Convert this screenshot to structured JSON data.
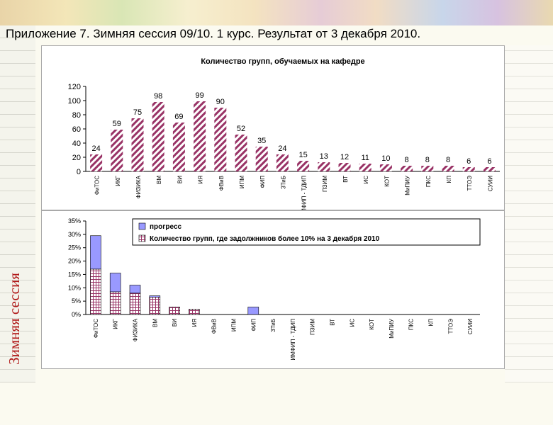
{
  "page": {
    "title": "Приложение 7. Зимняя сессия 09/10.   1 курс.  Результат от 3 декабря 2010.",
    "side_label": "Зимняя сессия"
  },
  "chart_data": [
    {
      "type": "bar",
      "title": "Количество групп, обучаемых на кафедре",
      "categories": [
        "ФиТОС",
        "ИКГ",
        "ФИЗИКА",
        "ВМ",
        "ВИ",
        "ИЯ",
        "ФВиВ",
        "ИПМ",
        "ФИП",
        "ЗТиБ",
        "ИМФИП - ТДИП",
        "ПЗИМ",
        "ВТ",
        "ИС",
        "КОТ",
        "МиПИУ",
        "ПКС",
        "КП",
        "ТТОЭ",
        "СУИИ"
      ],
      "values": [
        24,
        59,
        75,
        98,
        69,
        99,
        90,
        52,
        35,
        24,
        15,
        13,
        12,
        11,
        10,
        8,
        8,
        8,
        6,
        6
      ],
      "ylim": [
        0,
        120
      ],
      "yticks": [
        "0",
        "20",
        "40",
        "60",
        "80",
        "100",
        "120"
      ],
      "colors": {
        "bar": "#993366"
      },
      "xlabel": "",
      "ylabel": ""
    },
    {
      "type": "bar",
      "stacked": true,
      "categories": [
        "ФиТОС",
        "ИКГ",
        "ФИЗИКА",
        "ВМ",
        "ВИ",
        "ИЯ",
        "ФВиВ",
        "ИПМ",
        "ФИП",
        "ЗТиБ",
        "ИМФИП - ТДИП",
        "ПЗИМ",
        "ВТ",
        "ИС",
        "КОТ",
        "МиПИУ",
        "ПКС",
        "КП",
        "ТТОЭ",
        "СУИИ"
      ],
      "series": [
        {
          "name": "Количество групп, где задолжников более  10% на 3 декабря 2010",
          "values": [
            17,
            8.5,
            8,
            6.5,
            2.8,
            2,
            0,
            0,
            0,
            0,
            0,
            0,
            0,
            0,
            0,
            0,
            0,
            0,
            0,
            0
          ],
          "color": "#993366"
        },
        {
          "name": "прогресс",
          "values": [
            12.5,
            7,
            3,
            0.5,
            0,
            0,
            0,
            0,
            2.8,
            0,
            0,
            0,
            0,
            0,
            0,
            0,
            0,
            0,
            0,
            0
          ],
          "color": "#9999ff"
        }
      ],
      "ylim": [
        0,
        35
      ],
      "yticks": [
        "0%",
        "5%",
        "10%",
        "15%",
        "20%",
        "25%",
        "30%",
        "35%"
      ],
      "legend": "top",
      "xlabel": "",
      "ylabel": ""
    }
  ]
}
